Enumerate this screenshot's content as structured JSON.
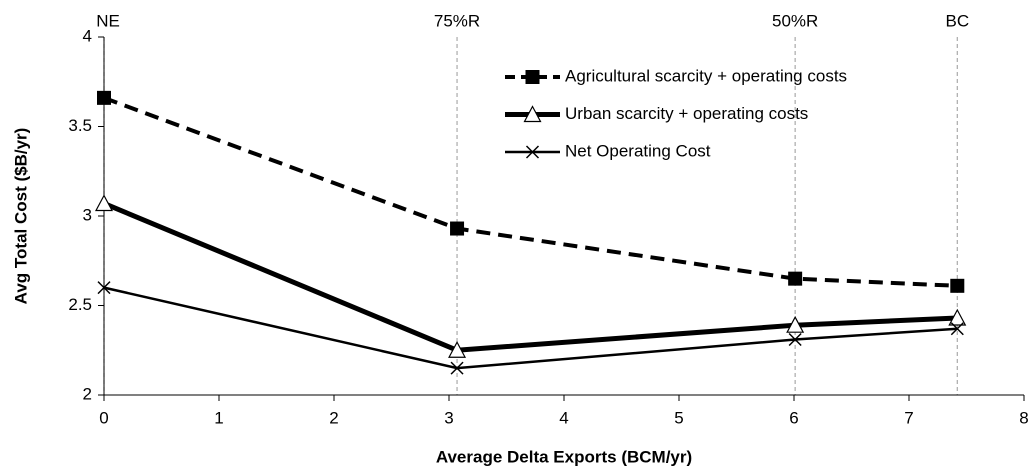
{
  "chart_data": {
    "type": "line",
    "xlabel": "Average Delta Exports (BCM/yr)",
    "ylabel": "Avg Total Cost ($B/yr)",
    "x": [
      0,
      3.07,
      6.01,
      7.42
    ],
    "series": [
      {
        "name": "Agricultural scarcity + operating costs",
        "color": "#000000",
        "values": [
          3.66,
          2.93,
          2.65,
          2.61
        ],
        "marker": "square",
        "dash": true,
        "width": 4
      },
      {
        "name": "Urban scarcity + operating costs",
        "color": "#000000",
        "values": [
          3.07,
          2.25,
          2.39,
          2.43
        ],
        "marker": "triangle",
        "dash": false,
        "width": 5
      },
      {
        "name": "Net Operating Cost",
        "color": "#000000",
        "values": [
          2.6,
          2.15,
          2.31,
          2.37
        ],
        "marker": "x",
        "dash": false,
        "width": 2.5
      }
    ],
    "reference_lines": [
      {
        "x": 0,
        "label": "NE"
      },
      {
        "x": 3.07,
        "label": "75%R"
      },
      {
        "x": 6.01,
        "label": "50%R"
      },
      {
        "x": 7.42,
        "label": "BC"
      }
    ],
    "xlim": [
      0,
      8
    ],
    "xticks": [
      0,
      1,
      2,
      3,
      4,
      5,
      6,
      7,
      8
    ],
    "ylim": [
      2,
      4
    ],
    "yticks": [
      2,
      2.5,
      3,
      3.5,
      4
    ],
    "legend": "top-right"
  }
}
